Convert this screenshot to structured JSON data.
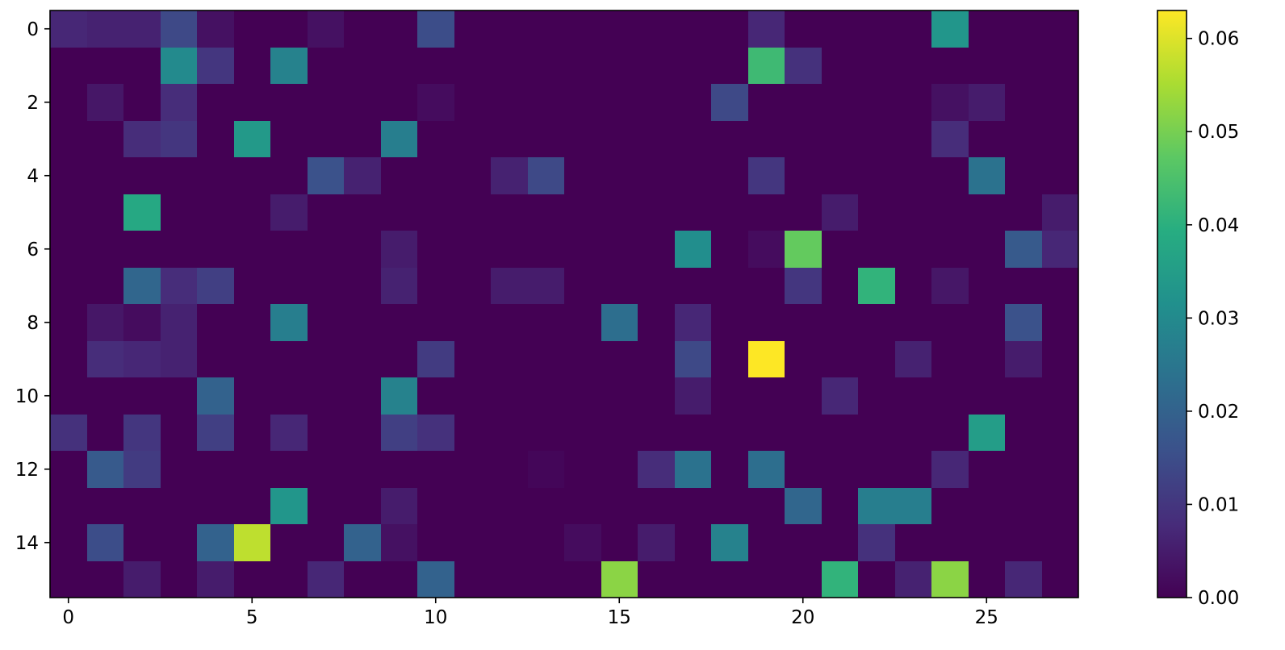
{
  "chart_data": {
    "type": "heatmap",
    "title": "",
    "xlabel": "",
    "ylabel": "",
    "colormap": "viridis",
    "n_rows": 16,
    "n_cols": 28,
    "vmin": 0,
    "vmax": 0.063,
    "x_ticks": [
      0,
      5,
      10,
      15,
      20,
      25
    ],
    "x_tick_labels": [
      "0",
      "5",
      "10",
      "15",
      "20",
      "25"
    ],
    "y_ticks": [
      0,
      2,
      4,
      6,
      8,
      10,
      12,
      14
    ],
    "y_tick_labels": [
      "0",
      "2",
      "4",
      "6",
      "8",
      "10",
      "12",
      "14"
    ],
    "colorbar_ticks": [
      0,
      0.01,
      0.02,
      0.03,
      0.04,
      0.05,
      0.06
    ],
    "colorbar_tick_labels": [
      "0.00",
      "0.01",
      "0.02",
      "0.03",
      "0.04",
      "0.05",
      "0.06"
    ],
    "values": [
      [
        0.007,
        0.006,
        0.006,
        0.014,
        0.003,
        0,
        0,
        0.003,
        0,
        0,
        0.015,
        0,
        0,
        0,
        0,
        0,
        0,
        0,
        0,
        0.007,
        0,
        0,
        0,
        0,
        0.033,
        0,
        0,
        0
      ],
      [
        0,
        0,
        0,
        0.03,
        0.01,
        0,
        0.028,
        0,
        0,
        0,
        0,
        0,
        0,
        0,
        0,
        0,
        0,
        0,
        0,
        0.043,
        0.009,
        0,
        0,
        0,
        0,
        0,
        0,
        0
      ],
      [
        0,
        0.004,
        0,
        0.008,
        0,
        0,
        0,
        0,
        0,
        0,
        0.002,
        0,
        0,
        0,
        0,
        0,
        0,
        0,
        0.014,
        0,
        0,
        0,
        0,
        0,
        0.003,
        0.005,
        0,
        0
      ],
      [
        0,
        0,
        0.008,
        0.01,
        0,
        0.034,
        0,
        0,
        0,
        0.027,
        0,
        0,
        0,
        0,
        0,
        0,
        0,
        0,
        0,
        0,
        0,
        0,
        0,
        0,
        0.008,
        0,
        0,
        0
      ],
      [
        0,
        0,
        0,
        0,
        0,
        0,
        0,
        0.016,
        0.006,
        0,
        0,
        0,
        0.006,
        0.014,
        0,
        0,
        0,
        0,
        0,
        0.01,
        0,
        0,
        0,
        0,
        0,
        0.024,
        0,
        0
      ],
      [
        0,
        0,
        0.038,
        0,
        0,
        0,
        0.005,
        0,
        0,
        0,
        0,
        0,
        0,
        0,
        0,
        0,
        0,
        0,
        0,
        0,
        0,
        0.005,
        0,
        0,
        0,
        0,
        0,
        0.005
      ],
      [
        0,
        0,
        0,
        0,
        0,
        0,
        0,
        0,
        0,
        0.005,
        0,
        0,
        0,
        0,
        0,
        0,
        0,
        0.031,
        0,
        0.002,
        0.048,
        0,
        0,
        0,
        0,
        0,
        0.018,
        0.007
      ],
      [
        0,
        0,
        0.021,
        0.008,
        0.012,
        0,
        0,
        0,
        0,
        0.006,
        0,
        0,
        0.005,
        0.005,
        0,
        0,
        0,
        0,
        0,
        0,
        0.01,
        0,
        0.041,
        0,
        0.004,
        0,
        0,
        0
      ],
      [
        0,
        0.004,
        0.002,
        0.006,
        0,
        0,
        0.027,
        0,
        0,
        0,
        0,
        0,
        0,
        0,
        0,
        0.023,
        0,
        0.007,
        0,
        0,
        0,
        0,
        0,
        0,
        0,
        0,
        0.016,
        0
      ],
      [
        0,
        0.008,
        0.007,
        0.006,
        0,
        0,
        0,
        0,
        0,
        0,
        0.011,
        0,
        0,
        0,
        0,
        0,
        0,
        0.014,
        0,
        0.063,
        0,
        0,
        0,
        0.006,
        0,
        0,
        0.005,
        0
      ],
      [
        0,
        0,
        0,
        0,
        0.02,
        0,
        0,
        0,
        0,
        0.028,
        0,
        0,
        0,
        0,
        0,
        0,
        0,
        0.005,
        0,
        0,
        0,
        0.007,
        0,
        0,
        0,
        0,
        0,
        0
      ],
      [
        0.009,
        0,
        0.01,
        0,
        0.012,
        0,
        0.007,
        0,
        0,
        0.012,
        0.009,
        0,
        0,
        0,
        0,
        0,
        0,
        0,
        0,
        0,
        0,
        0,
        0,
        0,
        0,
        0.035,
        0,
        0
      ],
      [
        0,
        0.018,
        0.011,
        0,
        0,
        0,
        0,
        0,
        0,
        0,
        0,
        0,
        0,
        0.001,
        0,
        0,
        0.008,
        0.024,
        0,
        0.023,
        0,
        0,
        0,
        0,
        0.007,
        0,
        0,
        0
      ],
      [
        0,
        0,
        0,
        0,
        0,
        0,
        0.033,
        0,
        0,
        0.005,
        0,
        0,
        0,
        0,
        0,
        0,
        0,
        0,
        0,
        0,
        0.021,
        0,
        0.027,
        0.027,
        0,
        0,
        0,
        0
      ],
      [
        0,
        0.015,
        0,
        0,
        0.02,
        0.057,
        0,
        0,
        0.02,
        0.003,
        0,
        0,
        0,
        0,
        0.002,
        0,
        0.005,
        0,
        0.028,
        0,
        0,
        0,
        0.009,
        0,
        0,
        0,
        0,
        0
      ],
      [
        0,
        0,
        0.005,
        0,
        0.005,
        0,
        0,
        0.007,
        0,
        0,
        0.02,
        0,
        0,
        0,
        0,
        0.052,
        0,
        0,
        0,
        0,
        0,
        0.041,
        0,
        0.006,
        0.052,
        0,
        0.007,
        0
      ]
    ]
  }
}
